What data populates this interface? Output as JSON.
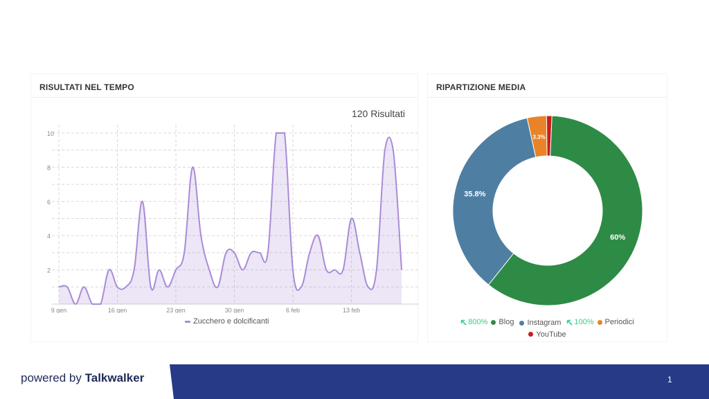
{
  "left_panel": {
    "title": "RISULTATI NEL TEMPO",
    "total_label": "120 Risultati",
    "legend_label": "Zucchero e dolcificanti"
  },
  "right_panel": {
    "title": "RIPARTIZIONE MEDIA",
    "legend": [
      {
        "trend": "800%",
        "label": "Blog",
        "color": "#2e8b45"
      },
      {
        "trend": "",
        "label": "Instagram",
        "color": "#4f7ea3"
      },
      {
        "trend": "100%",
        "label": "Periodici",
        "color": "#e8832a"
      },
      {
        "trend": "",
        "label": "YouTube",
        "color": "#c81d1d"
      }
    ]
  },
  "footer": {
    "powered_by": "powered by",
    "brand": "Talkwalker",
    "page_number": "1",
    "band_color": "#263a87"
  },
  "chart_data": [
    {
      "type": "area",
      "title": "RISULTATI NEL TEMPO",
      "series": [
        {
          "name": "Zucchero e dolcificanti",
          "color": "#a98bd8",
          "values": [
            1,
            1,
            0,
            1,
            0,
            0,
            2,
            1,
            1,
            2,
            6,
            1,
            2,
            1,
            2,
            3,
            8,
            4,
            2,
            1,
            3,
            3,
            2,
            3,
            3,
            3,
            10,
            10,
            2,
            1,
            3,
            4,
            2,
            2,
            2,
            5,
            3,
            1,
            2,
            9,
            9,
            2
          ]
        }
      ],
      "x_start": "9 gen",
      "x_tick_labels": [
        "9 gen",
        "16 gen",
        "23 gen",
        "30 gen",
        "6 feb",
        "13 feb"
      ],
      "y_ticks": [
        2,
        4,
        6,
        8,
        10
      ],
      "ylim": [
        0,
        10
      ],
      "grid": true,
      "total_label": "120 Risultati"
    },
    {
      "type": "pie",
      "title": "RIPARTIZIONE MEDIA",
      "donut": true,
      "slices": [
        {
          "label": "Blog",
          "value": 60,
          "display": "60%",
          "color": "#2e8b45"
        },
        {
          "label": "Instagram",
          "value": 35.8,
          "display": "35.8%",
          "color": "#4f7ea3"
        },
        {
          "label": "Periodici",
          "value": 3.3,
          "display": "3.3%",
          "color": "#e8832a"
        },
        {
          "label": "YouTube",
          "value": 0.9,
          "display": "",
          "color": "#c81d1d"
        }
      ]
    }
  ]
}
